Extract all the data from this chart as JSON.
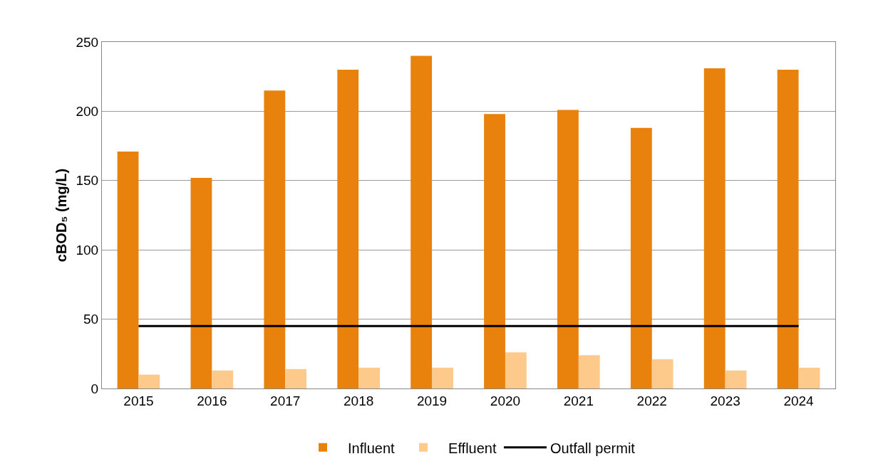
{
  "chart_data": {
    "type": "bar",
    "ylabel": "cBOD₅ (mg/L)",
    "categories": [
      "2015",
      "2016",
      "2017",
      "2018",
      "2019",
      "2020",
      "2021",
      "2022",
      "2023",
      "2024"
    ],
    "series": [
      {
        "name": "Influent",
        "color": "#e8820c",
        "values": [
          171,
          152,
          215,
          230,
          240,
          198,
          201,
          188,
          231,
          230
        ]
      },
      {
        "name": "Effluent",
        "color": "#fdca8c",
        "values": [
          10,
          13,
          14,
          15,
          15,
          26,
          24,
          21,
          13,
          15
        ]
      }
    ],
    "ref_lines": [
      {
        "axis": "y",
        "value": 45,
        "label": "Outfall permit",
        "color": "#000000",
        "line_style": "solid"
      }
    ],
    "ylim": [
      0,
      250
    ],
    "yticks": [
      0,
      50,
      100,
      150,
      200,
      250
    ],
    "grid": "y",
    "legend": "bottom"
  }
}
